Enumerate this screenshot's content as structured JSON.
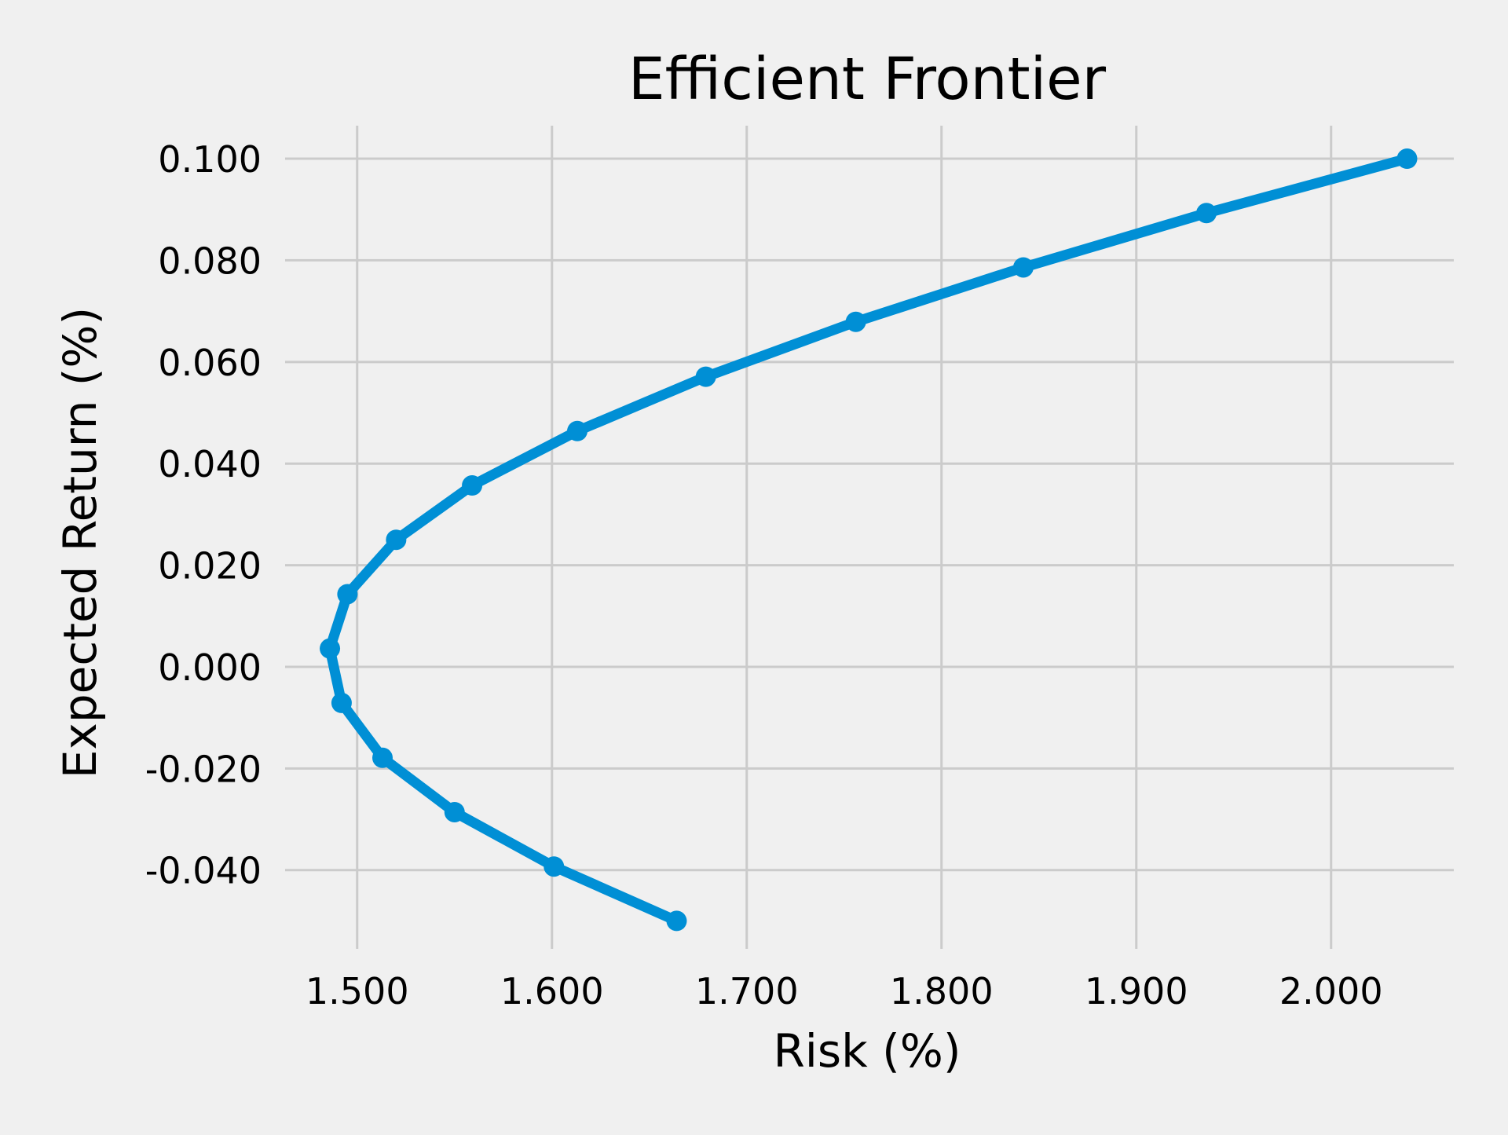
{
  "chart_data": {
    "type": "line",
    "title": "Efficient Frontier",
    "xlabel": "Risk (%)",
    "ylabel": "Expected Return (%)",
    "xlim": [
      1.463,
      2.063
    ],
    "ylim": [
      -0.0555,
      0.1065
    ],
    "x_ticks": [
      1.5,
      1.6,
      1.7,
      1.8,
      1.9,
      2.0
    ],
    "x_tick_labels": [
      "1.500",
      "1.600",
      "1.700",
      "1.800",
      "1.900",
      "2.000"
    ],
    "y_ticks": [
      0.1,
      0.08,
      0.06,
      0.04,
      0.02,
      0.0,
      -0.02,
      -0.04
    ],
    "y_tick_labels": [
      "0.100",
      "0.080",
      "0.060",
      "0.040",
      "0.020",
      "0.000",
      "-0.020",
      "-0.040"
    ],
    "grid": true,
    "legend": "none",
    "series": [
      {
        "color": "#008fd5",
        "marker": "circle",
        "x": [
          1.664,
          1.601,
          1.55,
          1.513,
          1.492,
          1.486,
          1.495,
          1.52,
          1.559,
          1.613,
          1.679,
          1.756,
          1.842,
          1.936,
          2.039
        ],
        "y": [
          -0.05,
          -0.0393,
          -0.0286,
          -0.0179,
          -0.0071,
          0.0036,
          0.0143,
          0.025,
          0.0357,
          0.0464,
          0.0571,
          0.0679,
          0.0786,
          0.0893,
          0.1
        ]
      }
    ]
  }
}
